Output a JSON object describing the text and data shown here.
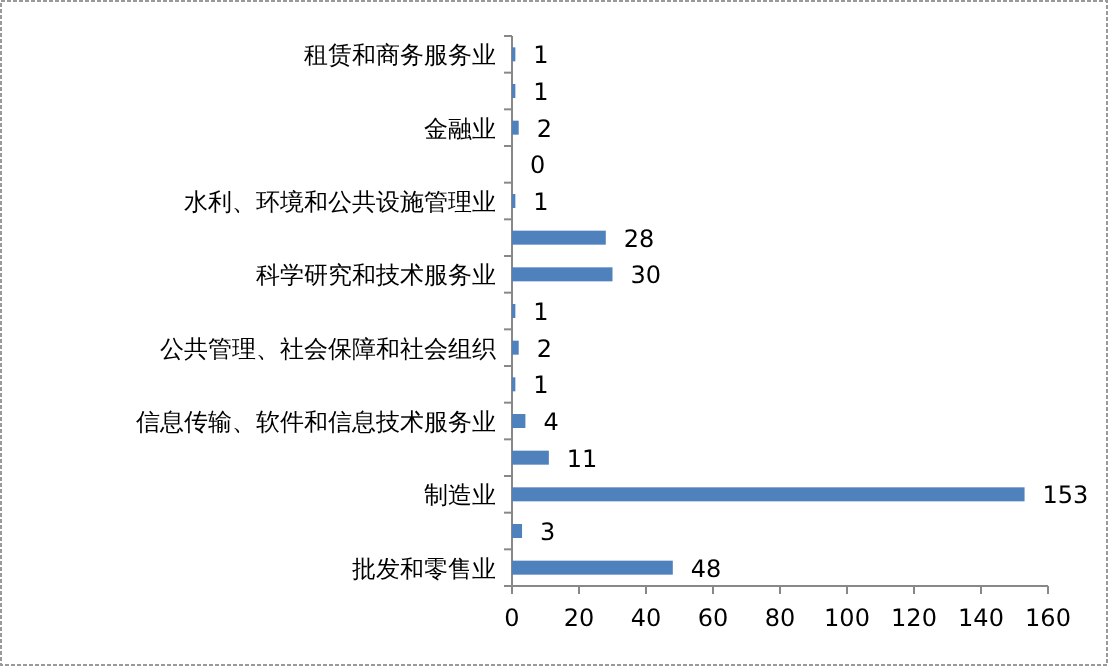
{
  "chart_data": {
    "type": "bar",
    "orientation": "horizontal",
    "categories": [
      "租赁和商务服务业",
      null,
      "金融业",
      null,
      "水利、环境和公共设施管理业",
      null,
      "科学研究和技术服务业",
      null,
      "公共管理、社会保障和社会组织",
      null,
      "信息传输、软件和信息技术服务业",
      null,
      "制造业",
      null,
      "批发和零售业"
    ],
    "values": [
      1,
      1,
      2,
      0,
      1,
      28,
      30,
      1,
      2,
      1,
      4,
      11,
      153,
      3,
      48
    ],
    "color": "#4f81bd",
    "xlim": [
      0,
      160
    ],
    "xticks": [
      0,
      20,
      40,
      60,
      80,
      100,
      120,
      140,
      160
    ],
    "data_labels": true,
    "grid": false
  }
}
